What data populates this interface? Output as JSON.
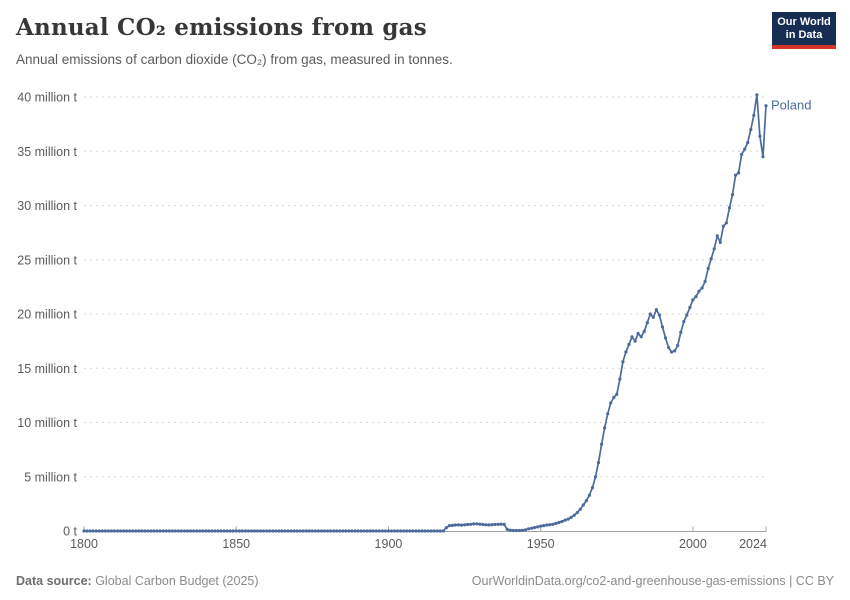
{
  "header": {
    "title": "Annual CO₂ emissions from gas",
    "subtitle": "Annual emissions of carbon dioxide (CO₂) from gas, measured in tonnes.",
    "logo": {
      "line1": "Our World",
      "line2": "in Data",
      "bg_color": "#152e52",
      "accent_color": "#d63426"
    }
  },
  "chart_data": {
    "type": "line",
    "title": "Annual CO₂ emissions from gas",
    "unit": "tonnes",
    "xlabel": "",
    "ylabel": "",
    "xlim": [
      1800,
      2024
    ],
    "ylim": [
      0,
      40
    ],
    "grid": "horizontal-dashed",
    "legend": "end-of-line-label",
    "line_color": "#4C6A9C",
    "yticks": [
      {
        "label": "0 t",
        "value": 0
      },
      {
        "label": "5 million t",
        "value": 5
      },
      {
        "label": "10 million t",
        "value": 10
      },
      {
        "label": "15 million t",
        "value": 15
      },
      {
        "label": "20 million t",
        "value": 20
      },
      {
        "label": "25 million t",
        "value": 25
      },
      {
        "label": "30 million t",
        "value": 30
      },
      {
        "label": "35 million t",
        "value": 35
      },
      {
        "label": "40 million t",
        "value": 40
      }
    ],
    "xticks": [
      {
        "label": "1800",
        "year": 1800
      },
      {
        "label": "1850",
        "year": 1850
      },
      {
        "label": "1900",
        "year": 1900
      },
      {
        "label": "1950",
        "year": 1950
      },
      {
        "label": "2000",
        "year": 2000
      },
      {
        "label": "2024",
        "year": 2024
      }
    ],
    "series": [
      {
        "name": "Poland",
        "color": "#4C6A9C",
        "start_year": 1800,
        "unit": "million tonnes",
        "values": [
          0,
          0,
          0,
          0,
          0,
          0,
          0,
          0,
          0,
          0,
          0,
          0,
          0,
          0,
          0,
          0,
          0,
          0,
          0,
          0,
          0,
          0,
          0,
          0,
          0,
          0,
          0,
          0,
          0,
          0,
          0,
          0,
          0,
          0,
          0,
          0,
          0,
          0,
          0,
          0,
          0,
          0,
          0,
          0,
          0,
          0,
          0,
          0,
          0,
          0,
          0,
          0,
          0,
          0,
          0,
          0,
          0,
          0,
          0,
          0,
          0,
          0,
          0,
          0,
          0,
          0,
          0,
          0,
          0,
          0,
          0,
          0,
          0,
          0,
          0,
          0,
          0,
          0,
          0,
          0,
          0,
          0,
          0,
          0,
          0,
          0,
          0,
          0,
          0,
          0,
          0,
          0,
          0,
          0,
          0,
          0,
          0,
          0,
          0,
          0,
          0,
          0,
          0,
          0,
          0,
          0,
          0,
          0,
          0,
          0,
          0,
          0,
          0,
          0,
          0,
          0,
          0,
          0,
          0,
          0.3,
          0.5,
          0.52,
          0.55,
          0.56,
          0.54,
          0.57,
          0.6,
          0.62,
          0.65,
          0.66,
          0.63,
          0.6,
          0.57,
          0.56,
          0.58,
          0.6,
          0.62,
          0.63,
          0.61,
          0.15,
          0.07,
          0.05,
          0.05,
          0.05,
          0.06,
          0.1,
          0.2,
          0.26,
          0.32,
          0.38,
          0.45,
          0.5,
          0.55,
          0.58,
          0.62,
          0.7,
          0.78,
          0.88,
          1.0,
          1.1,
          1.25,
          1.45,
          1.7,
          2.0,
          2.4,
          2.8,
          3.3,
          4.0,
          5.0,
          6.3,
          8.0,
          9.5,
          10.8,
          11.8,
          12.3,
          12.6,
          14.0,
          15.6,
          16.5,
          17.2,
          17.9,
          17.5,
          18.2,
          17.9,
          18.4,
          19.2,
          20.0,
          19.7,
          20.4,
          19.9,
          18.8,
          17.8,
          16.9,
          16.5,
          16.6,
          17.1,
          18.3,
          19.3,
          19.9,
          20.6,
          21.3,
          21.6,
          22.1,
          22.4,
          23.0,
          24.2,
          25.1,
          26.0,
          27.2,
          26.6,
          28.1,
          28.4,
          29.8,
          31.0,
          32.8,
          33.0,
          34.7,
          35.2,
          35.8,
          37.0,
          38.3,
          40.2,
          36.4,
          34.5,
          39.2
        ]
      }
    ]
  },
  "footer": {
    "source_label": "Data source:",
    "source_value": " Global Carbon Budget (2025)",
    "attribution": "OurWorldinData.org/co2-and-greenhouse-gas-emissions | CC BY"
  }
}
